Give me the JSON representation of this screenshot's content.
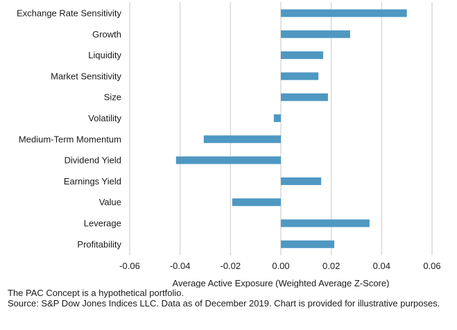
{
  "chart_data": {
    "type": "bar",
    "orientation": "horizontal",
    "title": "",
    "categories": [
      "Exchange Rate Sensitivity",
      "Growth",
      "Liquidity",
      "Market Sensitivity",
      "Size",
      "Volatility",
      "Medium-Term Momentum",
      "Dividend Yield",
      "Earnings Yield",
      "Value",
      "Leverage",
      "Profitability"
    ],
    "values": [
      0.05,
      0.0275,
      0.0168,
      0.0149,
      0.0187,
      -0.0028,
      -0.0306,
      -0.0416,
      0.016,
      -0.0193,
      0.0352,
      0.0212
    ],
    "xlabel": "Average Active Exposure (Weighted Average Z-Score)",
    "ylabel": "",
    "xlim": [
      -0.06,
      0.06
    ],
    "xticks": [
      -0.06,
      -0.04,
      -0.02,
      0.0,
      0.02,
      0.04,
      0.06
    ],
    "xtick_labels": [
      "-0.06",
      "-0.04",
      "-0.02",
      "0.00",
      "0.02",
      "0.04",
      "0.06"
    ],
    "grid": "vertical",
    "legend": "none",
    "bar_color": "#4f98c2",
    "grid_color": "#d9d9d9"
  },
  "footer": {
    "note": "The PAC Concept is a hypothetical portfolio.",
    "source": "Source: S&P Dow Jones Indices LLC.  Data as of December 2019.  Chart is provided for illustrative purposes."
  }
}
